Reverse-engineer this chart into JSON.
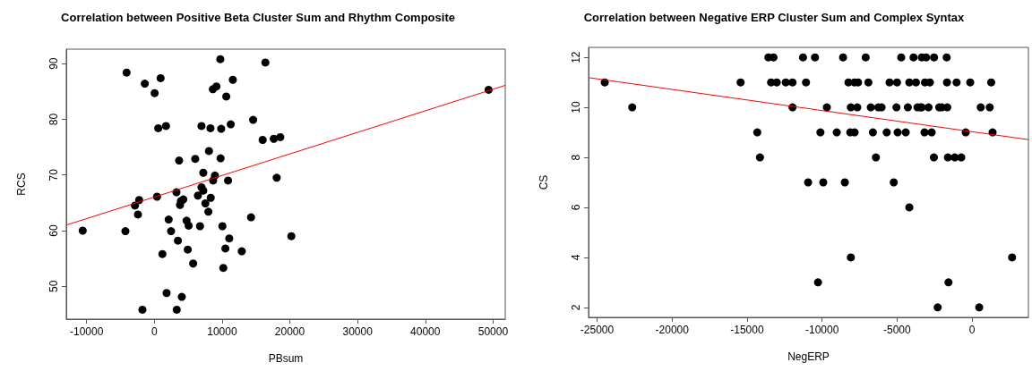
{
  "chart_data": [
    {
      "type": "scatter",
      "title": "Correlation between Positive Beta Cluster Sum and Rhythm Composite",
      "xlabel": "PBsum",
      "ylabel": "RCS",
      "xlim": [
        -13000,
        51800
      ],
      "ylim": [
        44.1,
        92.6
      ],
      "xticks": [
        -10000,
        0,
        10000,
        20000,
        30000,
        40000,
        50000
      ],
      "yticks": [
        50,
        60,
        70,
        80,
        90
      ],
      "series": [
        {
          "marker": "circle",
          "color": "#000000",
          "x": [
            -4100,
            -1410,
            925,
            44,
            573,
            1718,
            9736,
            9163,
            8634,
            10617,
            11586,
            6960,
            8282,
            9868,
            11278,
            14581,
            15990,
            8062,
            3656,
            6035,
            9780,
            7225,
            8943,
            8678,
            10881,
            6960,
            7225,
            3260,
            396,
            -2247,
            -2863,
            -2423,
            3790,
            4273,
            3920,
            6432,
            8326,
            7533,
            7974,
            2115,
            4758,
            5066,
            6740,
            10044,
            2467,
            -10573,
            -4273,
            3480,
            11057,
            4934,
            10485,
            12907,
            1189,
            5727,
            10176,
            14273,
            1806,
            4053,
            -1762,
            3304,
            16390,
            17630,
            18590,
            18060,
            20220,
            49340
          ],
          "values": [
            88.4,
            86.4,
            87.4,
            84.7,
            78.4,
            78.8,
            90.8,
            85.9,
            85.4,
            84.1,
            87.1,
            78.8,
            78.4,
            78.3,
            79.1,
            79.9,
            76.3,
            74.3,
            72.6,
            72.9,
            73.0,
            70.4,
            69.9,
            69.0,
            69.0,
            67.8,
            67.2,
            66.9,
            66.1,
            65.5,
            64.5,
            62.9,
            64.6,
            65.6,
            65.3,
            66.3,
            65.9,
            64.9,
            63.4,
            62.0,
            61.8,
            60.9,
            60.8,
            60.8,
            59.9,
            60.0,
            59.9,
            58.2,
            58.6,
            56.6,
            56.8,
            56.3,
            55.8,
            54.1,
            53.3,
            62.4,
            48.8,
            48.1,
            45.8,
            45.8,
            90.2,
            76.5,
            76.8,
            69.5,
            59.0,
            85.3
          ]
        },
        {
          "type": "line",
          "marker": "none",
          "color": "#ff0000",
          "x": [
            -13000,
            51800
          ],
          "values": [
            61.0,
            86.1
          ]
        }
      ]
    },
    {
      "type": "scatter",
      "title": "Correlation between Negative ERP Cluster Sum and Complex Syntax",
      "xlabel": "NegERP",
      "ylabel": "CS",
      "xlim": [
        -25570,
        3760
      ],
      "ylim": [
        1.6,
        12.4
      ],
      "xticks": [
        -25000,
        -20000,
        -15000,
        -10000,
        -5000,
        0
      ],
      "yticks": [
        2,
        4,
        6,
        8,
        10,
        12
      ],
      "series": [
        {
          "marker": "circle",
          "color": "#000000",
          "x": [
            -24490,
            -22660,
            -15430,
            -14320,
            -14140,
            -13580,
            -13240,
            -13400,
            -13020,
            -11270,
            -10470,
            -8600,
            -7090,
            -4720,
            -3900,
            -3350,
            -3060,
            -2530,
            -1690,
            -12420,
            -11970,
            -11070,
            -8240,
            -7840,
            -7600,
            -6910,
            -5500,
            -5000,
            -4180,
            -3740,
            -3140,
            -2810,
            -1670,
            -1030,
            -120,
            1280,
            -11970,
            -9680,
            -8080,
            -7650,
            -6750,
            -6250,
            -6030,
            -5040,
            -4280,
            -3640,
            -3440,
            -3350,
            -2900,
            -2190,
            -2010,
            -1650,
            580,
            1180,
            -10110,
            -9020,
            -8120,
            -7830,
            -6610,
            -5690,
            -4960,
            -4420,
            -3170,
            -2690,
            -420,
            1370,
            -6410,
            -2540,
            -1610,
            -1150,
            -720,
            -10930,
            -9920,
            -8480,
            -5220,
            -4180,
            -8080,
            2670,
            -10270,
            -1570,
            -2290,
            480
          ],
          "values": [
            11,
            10,
            11,
            9,
            8,
            12,
            12,
            11,
            11,
            12,
            12,
            12,
            12,
            12,
            12,
            12,
            12,
            12,
            12,
            11,
            11,
            11,
            11,
            11,
            11,
            11,
            11,
            11,
            11,
            11,
            11,
            11,
            11,
            11,
            11,
            11,
            10,
            10,
            10,
            10,
            10,
            10,
            10,
            10,
            10,
            10,
            10,
            10,
            10,
            10,
            10,
            10,
            10,
            10,
            9,
            9,
            9,
            9,
            9,
            9,
            9,
            9,
            9,
            9,
            9,
            9,
            8,
            8,
            8,
            8,
            8,
            7,
            7,
            7,
            7,
            6,
            4,
            4,
            3,
            3,
            2,
            2
          ]
        },
        {
          "type": "line",
          "marker": "none",
          "color": "#ff0000",
          "x": [
            -25570,
            3760
          ],
          "values": [
            11.19,
            8.71
          ]
        }
      ]
    }
  ]
}
